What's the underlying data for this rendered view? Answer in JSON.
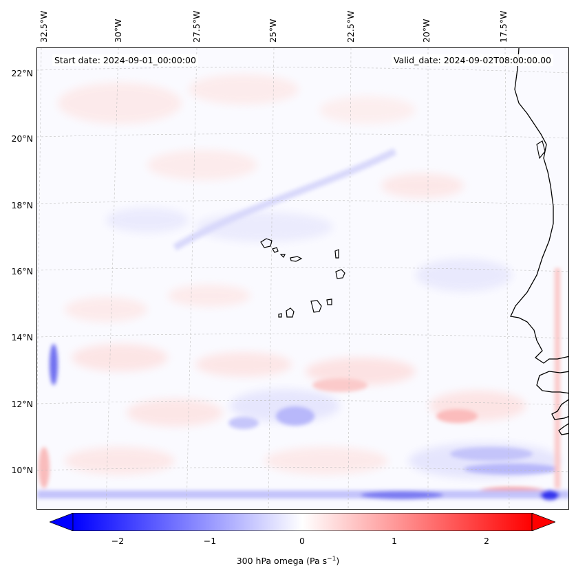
{
  "map": {
    "start_date": "Start date: 2024-09-01_00:00:00",
    "valid_date": "Valid_date: 2024-09-02T08:00:00.00",
    "lon_labels": [
      "32.5°W",
      "30°W",
      "27.5°W",
      "25°W",
      "22.5°W",
      "20°W",
      "17.5°W"
    ],
    "lat_labels": [
      "22°N",
      "20°N",
      "18°N",
      "16°N",
      "14°N",
      "12°N",
      "10°N"
    ],
    "coastline": "black",
    "gridlines": "dashed-light-gray",
    "islands": "Cape Verde"
  },
  "colorbar": {
    "label_prefix": "300 hPa omega (Pa s",
    "label_sup": "−1",
    "label_suffix": ")",
    "ticks": [
      "−2",
      "−1",
      "0",
      "1",
      "2"
    ],
    "range": [
      -2.7,
      2.7
    ],
    "colormap": "bwr",
    "extend": "both",
    "colors": {
      "min": "#0000ff",
      "mid": "#ffffff",
      "max": "#ff0000"
    }
  }
}
